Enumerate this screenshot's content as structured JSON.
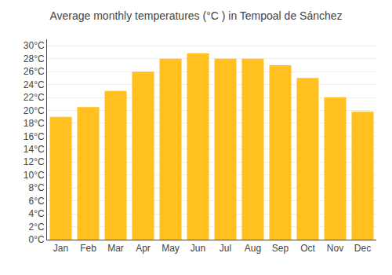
{
  "chart_data": {
    "type": "bar",
    "title": "Average monthly temperatures (°C ) in Tempoal de Sánchez",
    "categories": [
      "Jan",
      "Feb",
      "Mar",
      "Apr",
      "May",
      "Jun",
      "Jul",
      "Aug",
      "Sep",
      "Oct",
      "Nov",
      "Dec"
    ],
    "values": [
      19.0,
      20.5,
      23.0,
      26.0,
      28.0,
      28.8,
      28.0,
      28.0,
      27.0,
      25.0,
      22.0,
      19.8
    ],
    "color": "#FFC020",
    "ylim": [
      0,
      31
    ],
    "yticks": [
      {
        "value": 0,
        "label": "0°C"
      },
      {
        "value": 2,
        "label": "2°C"
      },
      {
        "value": 4,
        "label": "4°C"
      },
      {
        "value": 6,
        "label": "6°C"
      },
      {
        "value": 8,
        "label": "8°C"
      },
      {
        "value": 10,
        "label": "10°C"
      },
      {
        "value": 12,
        "label": "12°C"
      },
      {
        "value": 14,
        "label": "14°C"
      },
      {
        "value": 16,
        "label": "16°C"
      },
      {
        "value": 18,
        "label": "18°C"
      },
      {
        "value": 20,
        "label": "20°C"
      },
      {
        "value": 22,
        "label": "22°C"
      },
      {
        "value": 24,
        "label": "24°C"
      },
      {
        "value": 26,
        "label": "26°C"
      },
      {
        "value": 28,
        "label": "28°C"
      },
      {
        "value": 30,
        "label": "30°C"
      }
    ],
    "grid": true
  }
}
